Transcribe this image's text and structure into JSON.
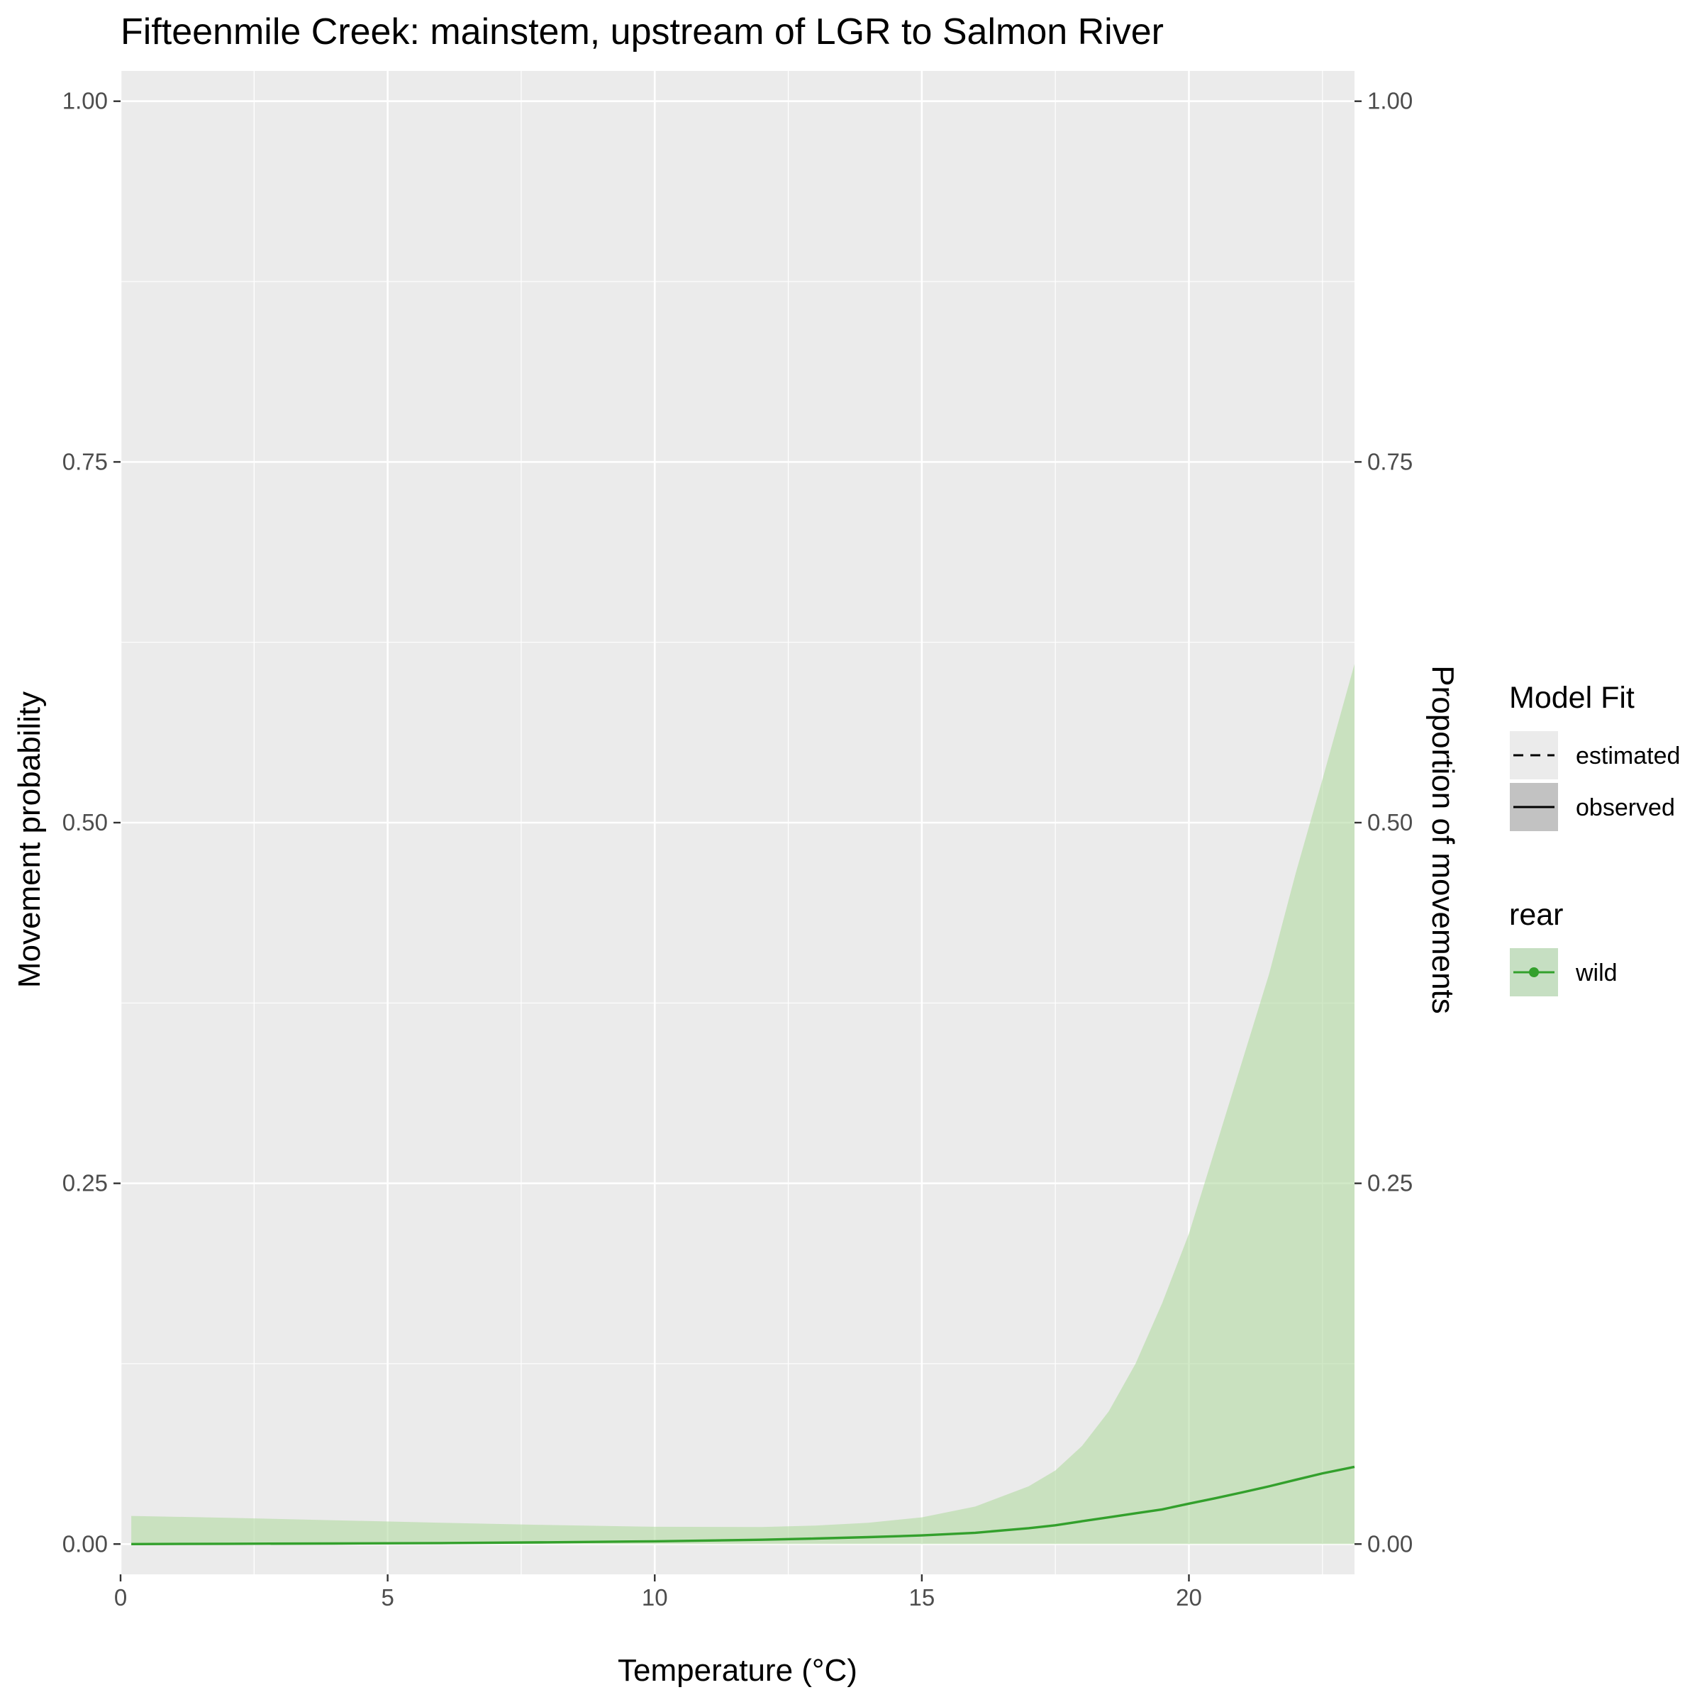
{
  "chart_data": {
    "type": "area",
    "title": "Fifteenmile Creek: mainstem, upstream of LGR to Salmon River",
    "xlabel": "Temperature (°C)",
    "ylabel": "Movement probability",
    "ylabel_right": "Proportion of movements",
    "xlim": [
      0,
      23.1
    ],
    "ylim": [
      0,
      1
    ],
    "x_ticks": [
      0,
      5,
      10,
      15,
      20
    ],
    "x_tick_labels": [
      "0",
      "5",
      "10",
      "15",
      "20"
    ],
    "y_ticks": [
      0,
      0.25,
      0.5,
      0.75,
      1
    ],
    "y_tick_labels": [
      "0.00",
      "0.25",
      "0.50",
      "0.75",
      "1.00"
    ],
    "y_tick_labels_right": [
      "0.00",
      "0.25",
      "0.50",
      "0.75",
      "1.00"
    ],
    "grid": true,
    "legend_placement": "right",
    "legends": [
      {
        "title": "Model Fit",
        "items": [
          {
            "label": "estimated",
            "style": "dashed"
          },
          {
            "label": "observed",
            "style": "solid"
          }
        ]
      },
      {
        "title": "rear",
        "items": [
          {
            "label": "wild",
            "color": "#33a02c"
          }
        ]
      }
    ],
    "series": [
      {
        "name": "wild",
        "color": "#33a02c",
        "ribbon_color": "#b2dba1",
        "x": [
          0.2,
          2,
          4,
          6,
          8,
          10,
          12,
          13,
          14,
          15,
          16,
          17,
          17.5,
          18,
          18.5,
          19,
          19.5,
          20,
          20.5,
          21,
          21.5,
          22,
          22.5,
          23.1
        ],
        "y": [
          0.0,
          0.0002,
          0.0004,
          0.0007,
          0.0012,
          0.0019,
          0.003,
          0.0038,
          0.0048,
          0.006,
          0.0078,
          0.011,
          0.013,
          0.0158,
          0.0185,
          0.0213,
          0.024,
          0.028,
          0.0318,
          0.0358,
          0.04,
          0.0445,
          0.049,
          0.0535
        ],
        "lower": [
          0.0,
          0.0,
          0.0,
          0.0,
          0.0,
          0.0,
          0.0,
          0.0,
          0.0,
          0.0,
          0.0,
          0.0,
          0.0,
          0.0,
          0.0,
          0.0,
          0.0,
          0.0,
          0.0,
          0.0,
          0.0,
          0.0,
          0.0,
          0.0
        ],
        "upper": [
          0.0195,
          0.0182,
          0.0165,
          0.0148,
          0.0132,
          0.012,
          0.0118,
          0.0128,
          0.0148,
          0.0185,
          0.026,
          0.04,
          0.051,
          0.068,
          0.092,
          0.125,
          0.167,
          0.215,
          0.275,
          0.335,
          0.395,
          0.465,
          0.53,
          0.61
        ]
      }
    ]
  }
}
